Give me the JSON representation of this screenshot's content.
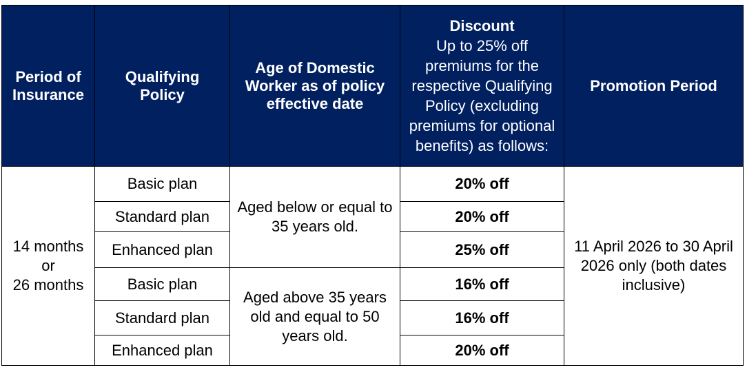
{
  "headers": {
    "period": "Period of Insurance",
    "policy": "Qualifying Policy",
    "age": "Age of Domestic Worker as of policy effective date",
    "discount_title": "Discount",
    "discount_desc": "Up to 25% off premiums for the respective Qualifying Policy (excluding premiums for optional benefits) as follows:",
    "promotion": "Promotion Period"
  },
  "period_value": {
    "line1": "14 months",
    "line2": "or",
    "line3": "26 months"
  },
  "age_groups": [
    "Aged below or equal to 35 years old.",
    "Aged above 35 years old and equal to 50 years old."
  ],
  "rows": [
    {
      "plan": "Basic plan",
      "discount": "20% off"
    },
    {
      "plan": "Standard plan",
      "discount": "20% off"
    },
    {
      "plan": "Enhanced plan",
      "discount": "25% off"
    },
    {
      "plan": "Basic plan",
      "discount": "16% off"
    },
    {
      "plan": "Standard plan",
      "discount": "16% off"
    },
    {
      "plan": "Enhanced plan",
      "discount": "20% off"
    }
  ],
  "promotion_period": "11 April 2026 to 30 April 2026 only (both dates inclusive)",
  "colors": {
    "header_bg": "#012060",
    "header_text": "#ffffff"
  }
}
